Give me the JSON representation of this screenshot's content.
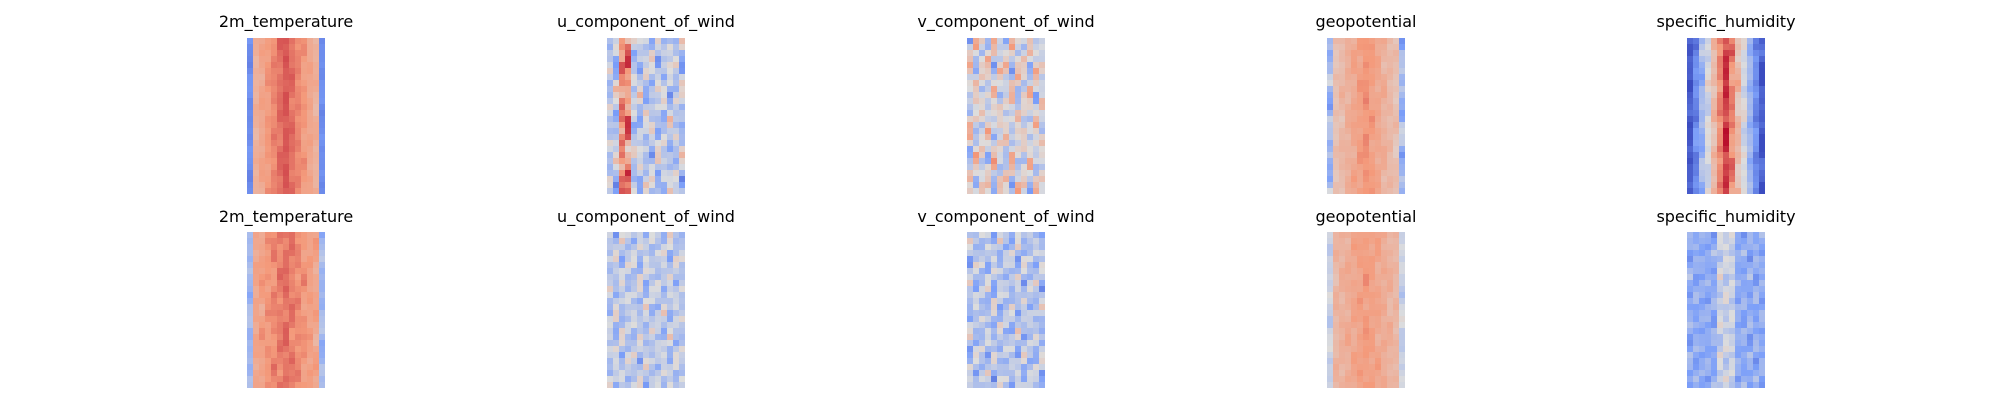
{
  "figure": {
    "rows": [
      {
        "panels": [
          {
            "title": "2m_temperature"
          },
          {
            "title": "u_component_of_wind"
          },
          {
            "title": "v_component_of_wind"
          },
          {
            "title": "geopotential"
          },
          {
            "title": "specific_humidity"
          }
        ]
      },
      {
        "panels": [
          {
            "title": "2m_temperature"
          },
          {
            "title": "u_component_of_wind"
          },
          {
            "title": "v_component_of_wind"
          },
          {
            "title": "geopotential"
          },
          {
            "title": "specific_humidity"
          }
        ]
      }
    ]
  },
  "chart_data": [
    {
      "type": "heatmap",
      "title": "2m_temperature",
      "colormap": "coolwarm",
      "axes": "off"
    },
    {
      "type": "heatmap",
      "title": "u_component_of_wind",
      "colormap": "coolwarm",
      "axes": "off"
    },
    {
      "type": "heatmap",
      "title": "v_component_of_wind",
      "colormap": "coolwarm",
      "axes": "off"
    },
    {
      "type": "heatmap",
      "title": "geopotential",
      "colormap": "coolwarm",
      "axes": "off"
    },
    {
      "type": "heatmap",
      "title": "specific_humidity",
      "colormap": "coolwarm",
      "axes": "off"
    },
    {
      "type": "heatmap",
      "title": "2m_temperature",
      "colormap": "coolwarm",
      "axes": "off"
    },
    {
      "type": "heatmap",
      "title": "u_component_of_wind",
      "colormap": "coolwarm",
      "axes": "off"
    },
    {
      "type": "heatmap",
      "title": "v_component_of_wind",
      "colormap": "coolwarm",
      "axes": "off"
    },
    {
      "type": "heatmap",
      "title": "geopotential",
      "colormap": "coolwarm",
      "axes": "off"
    },
    {
      "type": "heatmap",
      "title": "specific_humidity",
      "colormap": "coolwarm",
      "axes": "off"
    }
  ]
}
